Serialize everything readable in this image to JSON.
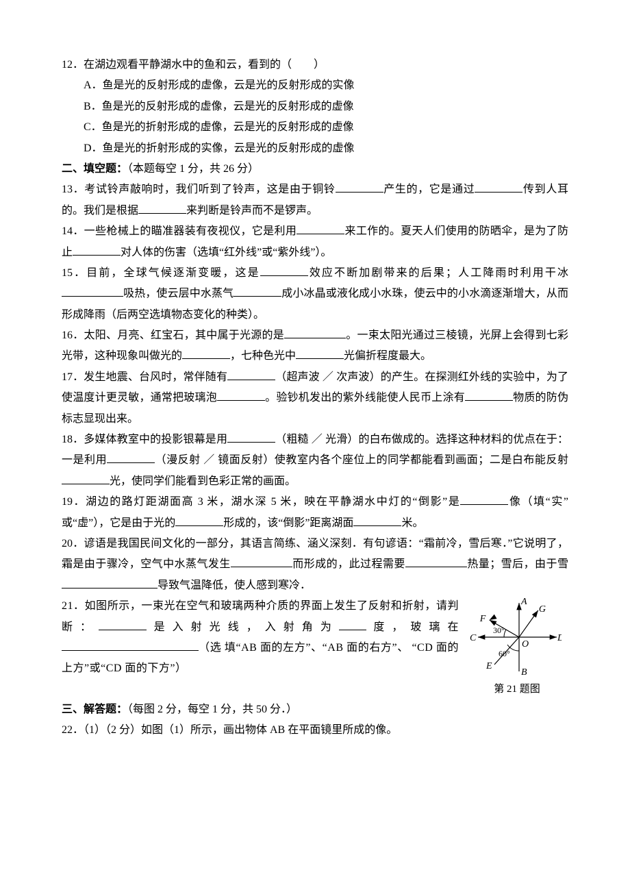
{
  "q12": {
    "stem": "12．在湖边观看平静湖水中的鱼和云，看到的（　　）",
    "options": {
      "A": "A．鱼是光的反射形成的虚像，云是光的反射形成的实像",
      "B": "B．鱼是光的反射形成的虚像，云是光的反射形成的虚像",
      "C": "C．鱼是光的折射形成的虚像，云是光的反射形成的虚像",
      "D": "D．鱼是光的折射形成的实像，云是光的反射形成的虚像"
    }
  },
  "section2": "二、填空题：",
  "section2_score": "（本题每空 1 分，共 26 分）",
  "q13": {
    "a": "13．考试铃声敲响时，我们听到了铃声，这是由于铜铃",
    "b": "产生的，它是通过",
    "c": "传到人耳的。我们是根据",
    "d": "来判断是铃声而不是锣声。"
  },
  "q14": {
    "a": "14．一些枪械上的瞄准器装有夜视仪，它是利用",
    "b": "来工作的。夏天人们使用的防晒伞，是为了防止",
    "c": "对人体的伤害（选填“红外线”或“紫外线”）。"
  },
  "q15": {
    "a": "15．目前，全球气候逐渐变暖，这是",
    "b": "效应不断加剧带来的后果；人工降雨时利用干冰",
    "c": "吸热，使云层中水蒸气",
    "d": "成小冰晶或液化成小水珠，使云中的小水滴逐渐增大，从而形成降雨（后两空选填物态变化的种类）。"
  },
  "q16": {
    "a": "16．太阳、月亮、红宝石，其中属于光源的是",
    "b": "。一束太阳光通过三棱镜，光屏上会得到七彩光带，这种现象叫做光的",
    "c": "，七种色光中",
    "d": "光偏折程度最大。"
  },
  "q17": {
    "a": "17．发生地震、台风时，常伴随有",
    "b": "（超声波 ／ 次声波）的产生。在探测红外线的实验中，为了使温度计更灵敏，通常把玻璃泡",
    "c": "。验钞机发出的紫外线能使人民币上涂有",
    "d": "物质的防伪标志显现出来。"
  },
  "q18": {
    "a": "18．多媒体教室中的投影银幕是用",
    "b": "（粗糙 ／ 光滑）的白布做成的。选择这种材料的优点在于：一是利用",
    "c": "（漫反射 ／ 镜面反射）使教室内各个座位上的同学都能看到画面；二是白布能反射",
    "d": "光，使同学们能看到色彩正常的画面。"
  },
  "q19": {
    "a": "19．湖边的路灯距湖面高 3 米，湖水深 5 米，映在平静湖水中灯的“倒影”是",
    "b": "像（填“实” 或“虚”），它是由于光的",
    "c": "形成的，该“倒影”距离湖面",
    "d": "米。"
  },
  "q20": {
    "a": "20．谚语是我国民间文化的一部分，其语言简练、涵义深刻．有句谚语：“霜前冷，雪后寒．”它说明了，霜是由于骤冷，空气中水蒸气发生",
    "b": "而形成的，此过程需要",
    "c": "热量；雪后，由于雪",
    "d": "导致气温降低，使人感到寒冷．"
  },
  "q21": {
    "a": "21．如图所示，一束光在空气和玻璃两种介质的界面上发生了反射和折射，请判断：",
    "b": "是入射光线，入射角为",
    "c": "度，玻璃在",
    "d": "（选 填“AB 面的左方”、“AB 面的右方”、 “CD 面的上方”或“CD 面的下方”）"
  },
  "q21_fig": {
    "labels": {
      "A": "A",
      "B": "B",
      "C": "C",
      "D": "D",
      "E": "E",
      "F": "F",
      "G": "G",
      "O": "O"
    },
    "angle30": "30°",
    "angle60": "60°",
    "caption": "第 21 题图",
    "line_color": "#000000",
    "font_size": 14,
    "arrow_size": 5
  },
  "section3": "三、解答题：",
  "section3_score": "（每图 2 分，每空 1 分，共 50 分．）",
  "q22": "22．（1）（2 分）如图（1）所示，画出物体 AB 在平面镜里所成的像。"
}
